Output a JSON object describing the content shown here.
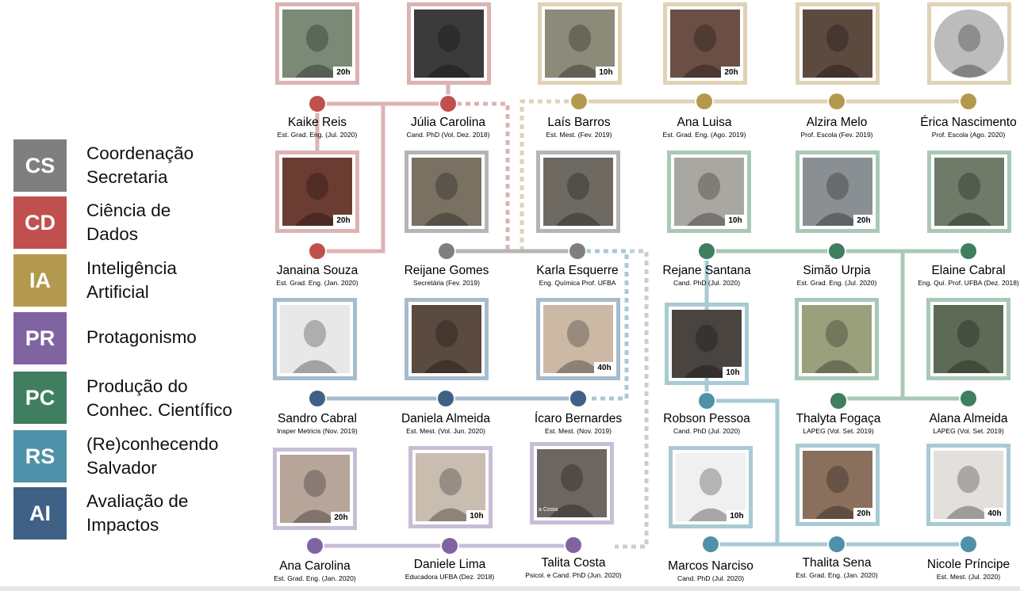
{
  "legend": [
    {
      "code": "CS",
      "color": "#7f7f7f",
      "lines": [
        "Coordenação",
        "Secretaria"
      ]
    },
    {
      "code": "CD",
      "color": "#c0504d",
      "lines": [
        "Ciência de",
        "Dados"
      ]
    },
    {
      "code": "IA",
      "color": "#b3994d",
      "lines": [
        "Inteligência",
        "Artificial"
      ]
    },
    {
      "code": "PR",
      "color": "#8064a2",
      "lines": [
        "Protagonismo"
      ]
    },
    {
      "code": "PC",
      "color": "#3f7e5f",
      "lines": [
        "Produção do",
        "Conhec. Científico"
      ]
    },
    {
      "code": "RS",
      "color": "#4f91a8",
      "lines": [
        "(Re)conhecendo",
        "Salvador"
      ]
    },
    {
      "code": "AI",
      "color": "#3e6185",
      "lines": [
        "Avaliação de",
        "Impactos"
      ]
    }
  ],
  "people": [
    {
      "name": "Kaike Reis",
      "role": "Est. Grad. Eng. (Jul. 2020)",
      "hours": "20h",
      "group": "CD"
    },
    {
      "name": "Júlia Carolina",
      "role": "Cand. PhD (Vol. Dez. 2018)",
      "hours": "",
      "group": "CD"
    },
    {
      "name": "Laís Barros",
      "role": "Est. Mest. (Fev. 2019)",
      "hours": "10h",
      "group": "IA"
    },
    {
      "name": "Ana Luisa",
      "role": "Est. Grad. Eng. (Ago. 2019)",
      "hours": "20h",
      "group": "IA"
    },
    {
      "name": "Alzira Melo",
      "role": "Prof. Escola (Fev. 2019)",
      "hours": "",
      "group": "IA"
    },
    {
      "name": "Érica Nascimento",
      "role": "Prof. Escola (Ago. 2020)",
      "hours": "",
      "group": "IA"
    },
    {
      "name": "Janaina Souza",
      "role": "Est. Grad. Eng. (Jan. 2020)",
      "hours": "20h",
      "group": "CD"
    },
    {
      "name": "Reijane Gomes",
      "role": "Secretária (Fev. 2019)",
      "hours": "",
      "group": "CS"
    },
    {
      "name": "Karla Esquerre",
      "role": "Eng. Química Prof. UFBA",
      "hours": "",
      "group": "CS"
    },
    {
      "name": "Rejane Santana",
      "role": "Cand. PhD (Jul. 2020)",
      "hours": "10h",
      "group": "PC"
    },
    {
      "name": "Simão Urpia",
      "role": "Est. Grad. Eng. (Jul. 2020)",
      "hours": "20h",
      "group": "PC"
    },
    {
      "name": "Elaine Cabral",
      "role": "Eng. Quí. Prof. UFBA (Dez. 2018)",
      "hours": "",
      "group": "PC"
    },
    {
      "name": "Sandro Cabral",
      "role": "Insper Metricis (Nov. 2019)",
      "hours": "",
      "group": "AI"
    },
    {
      "name": "Daniela Almeida",
      "role": "Est. Mest. (Vol. Jun. 2020)",
      "hours": "",
      "group": "AI"
    },
    {
      "name": "Ícaro Bernardes",
      "role": "Est. Mest. (Nov. 2019)",
      "hours": "40h",
      "group": "AI"
    },
    {
      "name": "Robson Pessoa",
      "role": "Cand. PhD (Jul. 2020)",
      "hours": "10h",
      "group": "RS"
    },
    {
      "name": "Thalyta Fogaça",
      "role": "LAPEG (Vol. Set. 2019)",
      "hours": "",
      "group": "PC"
    },
    {
      "name": "Alana Almeida",
      "role": "LAPEG (Vol. Set. 2019)",
      "hours": "",
      "group": "PC"
    },
    {
      "name": "Ana Carolina",
      "role": "Est. Grad. Eng. (Jan. 2020)",
      "hours": "20h",
      "group": "PR"
    },
    {
      "name": "Daniele Lima",
      "role": "Educadora UFBA (Dez. 2018)",
      "hours": "10h",
      "group": "PR"
    },
    {
      "name": "Talita Costa",
      "role": "Psicol. e Cand. PhD (Jun. 2020)",
      "hours": "",
      "group": "PR",
      "photo_caption": "a Costa"
    },
    {
      "name": "Marcos Narciso",
      "role": "Cand. PhD (Jul. 2020)",
      "hours": "10h",
      "group": "RS"
    },
    {
      "name": "Thalita Sena",
      "role": "Est. Grad. Eng. (Jan. 2020)",
      "hours": "20h",
      "group": "RS"
    },
    {
      "name": "Nicole Príncipe",
      "role": "Est. Mest. (Jul. 2020)",
      "hours": "40h",
      "group": "RS"
    }
  ]
}
